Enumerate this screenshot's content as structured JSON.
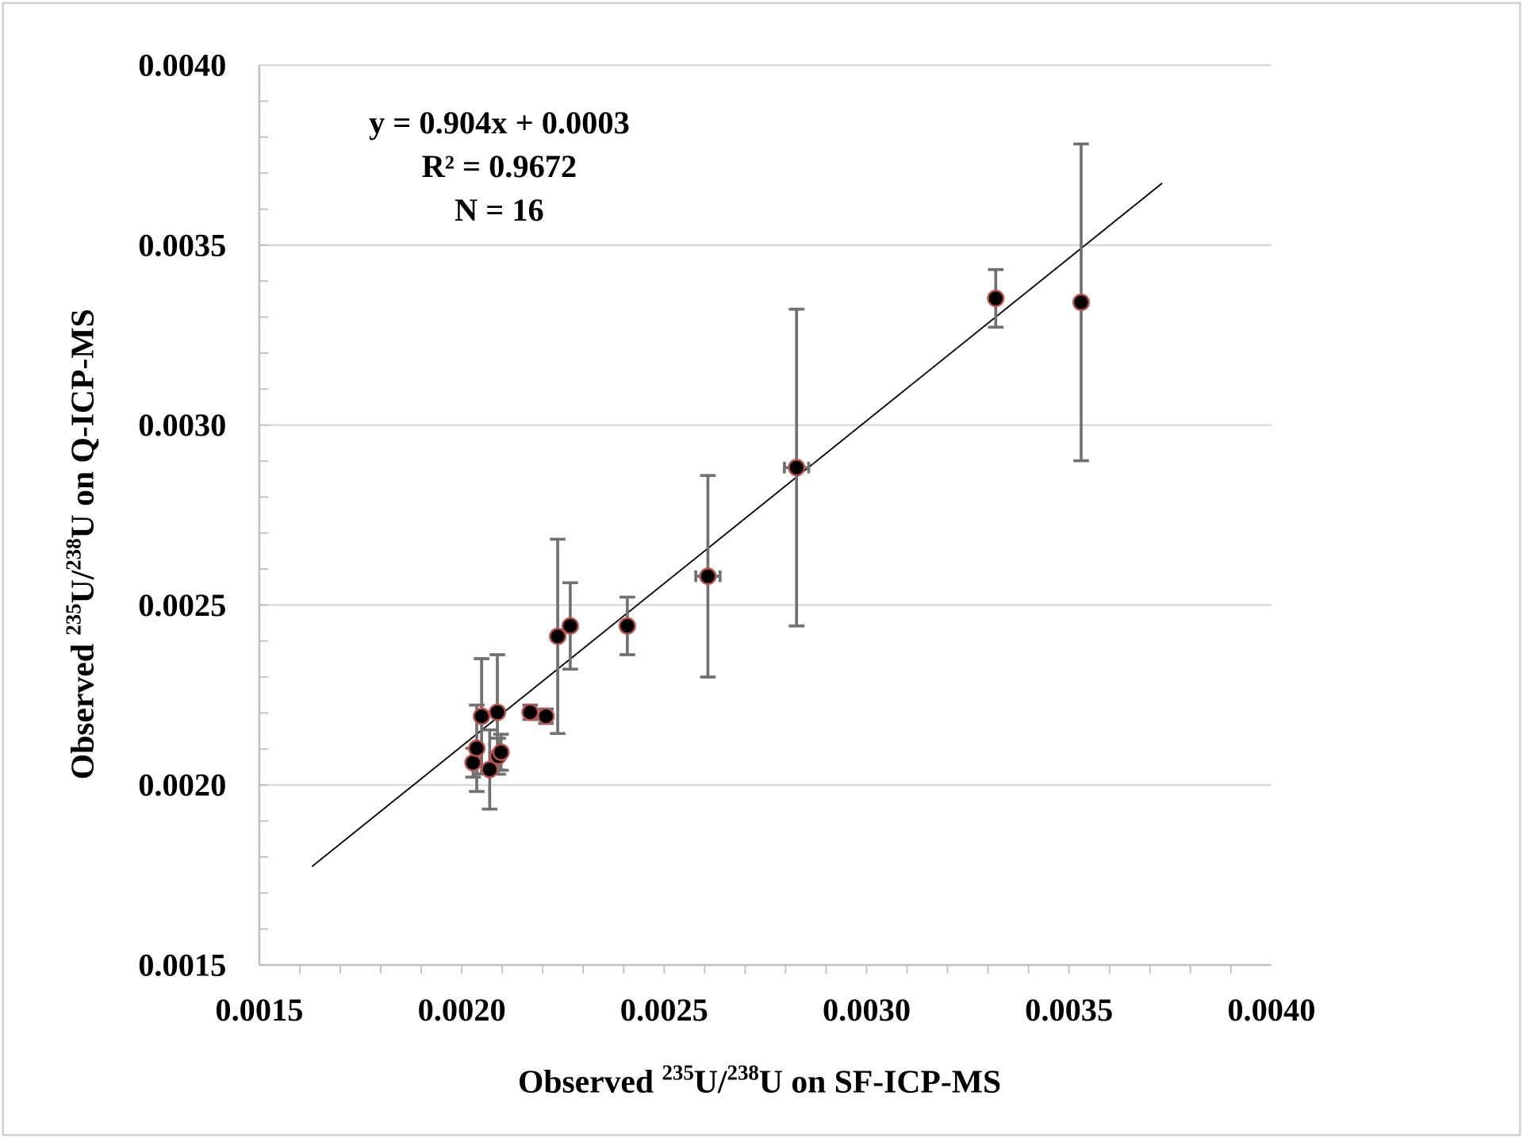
{
  "chart_data": {
    "type": "scatter",
    "xlabel_prefix": "Observed ",
    "xlabel_sup1": "235",
    "xlabel_mid": "U/",
    "xlabel_sup2": "238",
    "xlabel_suffix": "U on SF-ICP-MS",
    "ylabel_prefix": "Observed ",
    "ylabel_sup1": "235",
    "ylabel_mid": "U/",
    "ylabel_sup2": "238",
    "ylabel_suffix": "U on Q-ICP-MS",
    "xlim": [
      0.0015,
      0.004
    ],
    "ylim": [
      0.0015,
      0.004
    ],
    "xticks": [
      "0.0015",
      "0.0020",
      "0.0025",
      "0.0030",
      "0.0035",
      "0.0040"
    ],
    "yticks": [
      "0.0015",
      "0.0020",
      "0.0025",
      "0.0030",
      "0.0035",
      "0.0040"
    ],
    "grid": "horizontal",
    "annotation": {
      "equation": "y = 0.904x + 0.0003",
      "r2": "R² = 0.9672",
      "n": "N = 16"
    },
    "trendline": {
      "slope": 0.904,
      "intercept": 0.0003,
      "x_range": [
        0.00163,
        0.00373
      ]
    },
    "points": [
      {
        "x": 0.002028,
        "y": 0.002062,
        "yerr": 4e-05,
        "xerr": 0
      },
      {
        "x": 0.002037,
        "y": 0.002102,
        "yerr": 0.00012,
        "xerr": 0
      },
      {
        "x": 0.002049,
        "y": 0.002191,
        "yerr": 0.00016,
        "xerr": 0
      },
      {
        "x": 0.002069,
        "y": 0.002043,
        "yerr": 0.00011,
        "xerr": 0
      },
      {
        "x": 0.002088,
        "y": 0.002202,
        "yerr": 0.00016,
        "xerr": 0
      },
      {
        "x": 0.00209,
        "y": 0.00208,
        "yerr": 5e-05,
        "xerr": 0
      },
      {
        "x": 0.002097,
        "y": 0.002091,
        "yerr": 5e-05,
        "xerr": 0
      },
      {
        "x": 0.002169,
        "y": 0.002202,
        "yerr": 2e-05,
        "xerr": 0
      },
      {
        "x": 0.002208,
        "y": 0.002191,
        "yerr": 2e-05,
        "xerr": 0
      },
      {
        "x": 0.002237,
        "y": 0.002413,
        "yerr": 0.00027,
        "xerr": 0
      },
      {
        "x": 0.002268,
        "y": 0.002442,
        "yerr": 0.00012,
        "xerr": 0
      },
      {
        "x": 0.002409,
        "y": 0.002442,
        "yerr": 8e-05,
        "xerr": 0
      },
      {
        "x": 0.002608,
        "y": 0.00258,
        "yerr": 0.00028,
        "xerr": 3e-05
      },
      {
        "x": 0.002827,
        "y": 0.002882,
        "yerr": 0.00044,
        "xerr": 3e-05
      },
      {
        "x": 0.003319,
        "y": 0.003352,
        "yerr": 8e-05,
        "xerr": 0
      },
      {
        "x": 0.00353,
        "y": 0.003341,
        "yerr": 0.00044,
        "xerr": 0
      }
    ],
    "colors": {
      "marker_fill": "#000000",
      "marker_edge": "#c0504d",
      "errorbar": "#707070",
      "grid": "#d9d9d9",
      "trend": "#000000"
    }
  }
}
